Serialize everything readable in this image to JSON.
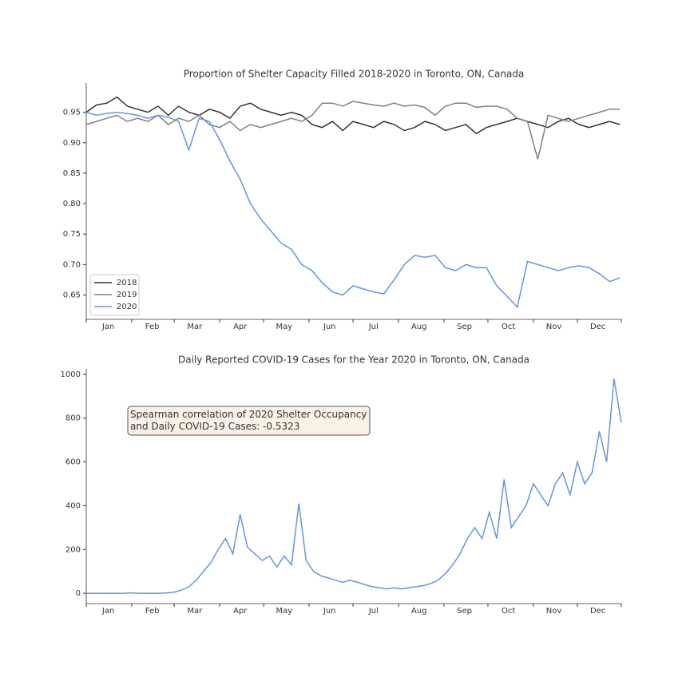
{
  "chart_data": [
    {
      "type": "line",
      "title": "Proportion of Shelter Capacity Filled 2018-2020 in Toronto, ON, Canada",
      "x": [
        1,
        8,
        15,
        22,
        29,
        36,
        43,
        50,
        57,
        64,
        71,
        78,
        85,
        92,
        99,
        106,
        113,
        120,
        127,
        134,
        141,
        148,
        155,
        162,
        169,
        176,
        183,
        190,
        197,
        204,
        211,
        218,
        225,
        232,
        239,
        246,
        253,
        260,
        267,
        274,
        281,
        288,
        295,
        302,
        309,
        316,
        323,
        330,
        337,
        344,
        351,
        358,
        365
      ],
      "xlim": [
        1,
        366
      ],
      "xticks": [
        {
          "value": 16,
          "label": "Jan"
        },
        {
          "value": 46,
          "label": "Feb"
        },
        {
          "value": 75,
          "label": "Mar"
        },
        {
          "value": 106,
          "label": "Apr"
        },
        {
          "value": 136,
          "label": "May"
        },
        {
          "value": 167,
          "label": "Jun"
        },
        {
          "value": 197,
          "label": "Jul"
        },
        {
          "value": 228,
          "label": "Aug"
        },
        {
          "value": 259,
          "label": "Sep"
        },
        {
          "value": 289,
          "label": "Oct"
        },
        {
          "value": 320,
          "label": "Nov"
        },
        {
          "value": 350,
          "label": "Dec"
        }
      ],
      "xminorticks": [
        1,
        32,
        61,
        92,
        122,
        153,
        183,
        214,
        245,
        275,
        306,
        336,
        366
      ],
      "ylim": [
        0.61,
        0.998
      ],
      "yticks": [
        0.65,
        {
          "value": 0.7,
          "label": "0.70"
        },
        0.75,
        {
          "value": 0.8,
          "label": "0.80"
        },
        0.85,
        {
          "value": 0.9,
          "label": "0.90"
        },
        0.95
      ],
      "legend": "lower left",
      "series": [
        {
          "name": "2018",
          "color": "#333333",
          "values": [
            0.95,
            0.962,
            0.965,
            0.975,
            0.96,
            0.955,
            0.95,
            0.96,
            0.945,
            0.96,
            0.95,
            0.945,
            0.955,
            0.95,
            0.94,
            0.96,
            0.965,
            0.955,
            0.95,
            0.945,
            0.95,
            0.945,
            0.93,
            0.925,
            0.935,
            0.92,
            0.935,
            0.93,
            0.925,
            0.935,
            0.93,
            0.92,
            0.925,
            0.935,
            0.93,
            0.92,
            0.925,
            0.93,
            0.915,
            0.925,
            0.93,
            0.935,
            0.94,
            0.935,
            0.93,
            0.925,
            0.935,
            0.94,
            0.93,
            0.925,
            0.93,
            0.935,
            0.93
          ]
        },
        {
          "name": "2019",
          "color": "#808080",
          "values": [
            0.93,
            0.935,
            0.94,
            0.945,
            0.935,
            0.94,
            0.935,
            0.945,
            0.93,
            0.94,
            0.935,
            0.945,
            0.93,
            0.925,
            0.935,
            0.92,
            0.93,
            0.925,
            0.93,
            0.935,
            0.94,
            0.935,
            0.945,
            0.965,
            0.965,
            0.96,
            0.968,
            0.965,
            0.962,
            0.96,
            0.965,
            0.96,
            0.962,
            0.958,
            0.945,
            0.96,
            0.965,
            0.965,
            0.958,
            0.96,
            0.96,
            0.955,
            0.94,
            0.935,
            0.873,
            0.945,
            0.94,
            0.935,
            0.94,
            0.945,
            0.95,
            0.955,
            0.955
          ]
        },
        {
          "name": "2020",
          "color": "#6495dc",
          "values": [
            0.95,
            0.945,
            0.948,
            0.95,
            0.948,
            0.945,
            0.94,
            0.945,
            0.942,
            0.935,
            0.888,
            0.94,
            0.935,
            0.905,
            0.87,
            0.84,
            0.8,
            0.775,
            0.755,
            0.735,
            0.725,
            0.7,
            0.69,
            0.67,
            0.655,
            0.65,
            0.665,
            0.66,
            0.655,
            0.652,
            0.675,
            0.7,
            0.715,
            0.712,
            0.715,
            0.695,
            0.69,
            0.7,
            0.695,
            0.695,
            0.665,
            0.648,
            0.63,
            0.705,
            0.7,
            0.695,
            0.69,
            0.695,
            0.698,
            0.695,
            0.685,
            0.672,
            0.678
          ]
        }
      ]
    },
    {
      "type": "line",
      "title": "Daily Reported COVID-19 Cases for the Year 2020 in Toronto, ON, Canada",
      "annotation": "Spearman correlation of 2020 Shelter Occupancy\nand Daily COVID-19 Cases: -0.5323",
      "x": [
        1,
        6,
        11,
        16,
        21,
        26,
        31,
        36,
        41,
        46,
        51,
        56,
        61,
        66,
        71,
        76,
        81,
        86,
        91,
        96,
        101,
        106,
        111,
        116,
        121,
        126,
        131,
        136,
        141,
        146,
        151,
        156,
        161,
        166,
        171,
        176,
        181,
        186,
        191,
        196,
        201,
        206,
        211,
        216,
        221,
        226,
        231,
        236,
        241,
        246,
        251,
        256,
        261,
        266,
        271,
        276,
        281,
        286,
        291,
        296,
        301,
        306,
        311,
        316,
        321,
        326,
        331,
        336,
        341,
        346,
        351,
        356,
        361,
        366
      ],
      "xlim": [
        1,
        366
      ],
      "xticks": [
        {
          "value": 16,
          "label": "Jan"
        },
        {
          "value": 46,
          "label": "Feb"
        },
        {
          "value": 75,
          "label": "Mar"
        },
        {
          "value": 106,
          "label": "Apr"
        },
        {
          "value": 136,
          "label": "May"
        },
        {
          "value": 167,
          "label": "Jun"
        },
        {
          "value": 197,
          "label": "Jul"
        },
        {
          "value": 228,
          "label": "Aug"
        },
        {
          "value": 259,
          "label": "Sep"
        },
        {
          "value": 289,
          "label": "Oct"
        },
        {
          "value": 320,
          "label": "Nov"
        },
        {
          "value": 350,
          "label": "Dec"
        }
      ],
      "xminorticks": [
        1,
        32,
        61,
        92,
        122,
        153,
        183,
        214,
        245,
        275,
        306,
        336,
        366
      ],
      "ylim": [
        -47,
        1025
      ],
      "yticks": [
        0,
        200,
        400,
        600,
        800,
        1000
      ],
      "series": [
        {
          "name": "2020",
          "color": "#6495dc",
          "values": [
            0,
            0,
            0,
            0,
            0,
            0,
            2,
            0,
            0,
            0,
            0,
            2,
            5,
            15,
            30,
            60,
            100,
            140,
            200,
            250,
            180,
            360,
            210,
            180,
            150,
            170,
            120,
            170,
            130,
            410,
            150,
            100,
            80,
            70,
            60,
            50,
            60,
            50,
            40,
            30,
            25,
            20,
            25,
            20,
            25,
            30,
            35,
            45,
            60,
            90,
            130,
            180,
            250,
            300,
            250,
            370,
            250,
            520,
            300,
            350,
            400,
            500,
            450,
            400,
            500,
            550,
            450,
            600,
            500,
            550,
            740,
            600,
            980,
            780
          ]
        }
      ]
    }
  ]
}
